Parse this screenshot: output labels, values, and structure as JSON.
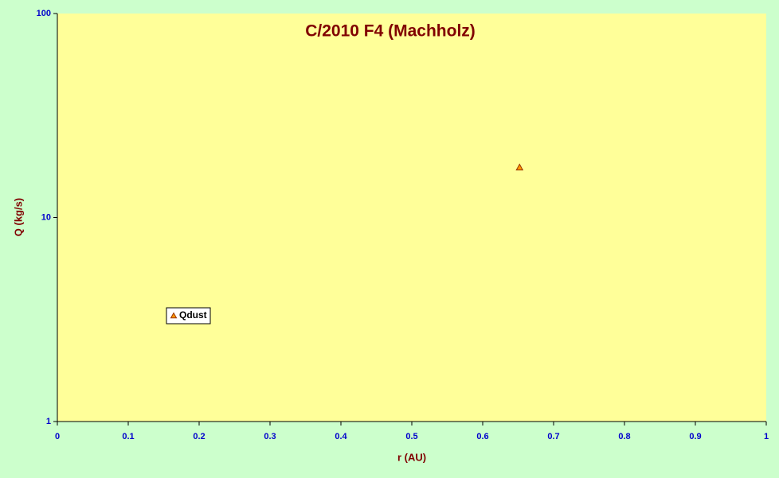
{
  "chart_data": {
    "type": "scatter",
    "title": "C/2010 F4 (Machholz)",
    "x_label": "r (AU)",
    "y_label": "Q (kg/s)",
    "series": [
      {
        "name": "Qdust",
        "color": "#ff9900",
        "x": [
          0.652
        ],
        "values": [
          17.6
        ]
      }
    ],
    "xlim": [
      0,
      1
    ],
    "xticks": [
      0,
      0.1,
      0.2,
      0.3,
      0.4,
      0.5,
      0.6,
      0.7,
      0.8,
      0.9,
      1
    ],
    "ylim": [
      1,
      100
    ],
    "yticks": [
      1,
      10,
      100
    ],
    "y_log": true,
    "grid": false,
    "legend": "left"
  }
}
